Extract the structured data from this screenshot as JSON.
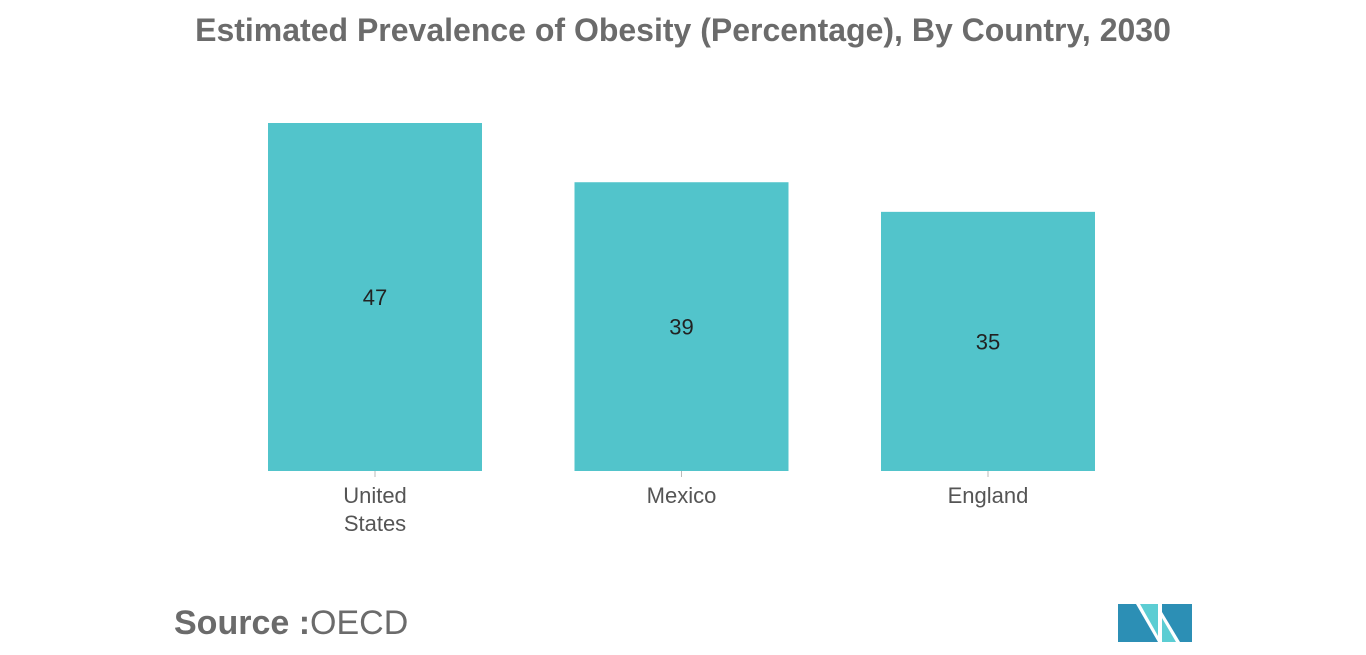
{
  "chart_data": {
    "type": "bar",
    "title": "Estimated Prevalence of Obesity (Percentage), By Country, 2030",
    "categories": [
      "United States",
      "Mexico",
      "England"
    ],
    "category_lines": [
      [
        "United",
        "States"
      ],
      [
        "Mexico"
      ],
      [
        "England"
      ]
    ],
    "values": [
      47,
      39,
      35
    ],
    "data_labels": [
      "47",
      "39",
      "35"
    ],
    "xlabel": "",
    "ylabel": "",
    "ylim": [
      0,
      47
    ],
    "grid": false,
    "bar_color": "#52c4cb"
  },
  "source": {
    "label": "Source :",
    "value": "OECD"
  },
  "colors": {
    "title": "#6b6b6b",
    "bar": "#52c4cb",
    "axis_text": "#555555",
    "logo_dark": "#2c8fb5",
    "logo_light": "#5ccdd3"
  }
}
